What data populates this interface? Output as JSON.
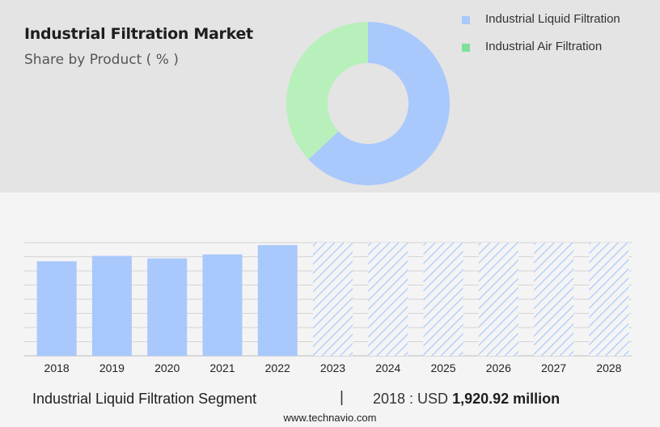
{
  "chart_data": [
    {
      "type": "pie",
      "title": "Industrial Filtration Market",
      "subtitle": "Share by Product ( % )",
      "slices": [
        {
          "name": "Industrial Liquid Filtration",
          "value": 63,
          "color": "#a9c8fc"
        },
        {
          "name": "Industrial Air Filtration",
          "value": 37,
          "color": "#b8f0bc"
        }
      ],
      "legend_placement": "top-right",
      "legend_swatch_colors": [
        "#a9c8fc",
        "#7ee09a"
      ]
    },
    {
      "type": "bar",
      "categories": [
        "2018",
        "2019",
        "2020",
        "2021",
        "2022",
        "2023",
        "2024",
        "2025",
        "2026",
        "2027",
        "2028"
      ],
      "values": [
        1920.92,
        2030,
        1980,
        2060,
        2250,
        null,
        null,
        null,
        null,
        null,
        null
      ],
      "forecast_from": "2023",
      "bar_color": "#a9c8fc",
      "grid": true,
      "ylim": [
        0,
        2300
      ],
      "xlabel": "",
      "ylabel": ""
    }
  ],
  "footer": {
    "segment": "Industrial Liquid Filtration Segment",
    "separator": "|",
    "value_prefix": "2018 : USD",
    "value": "1,920.92 million"
  },
  "source": "www.technavio.com"
}
